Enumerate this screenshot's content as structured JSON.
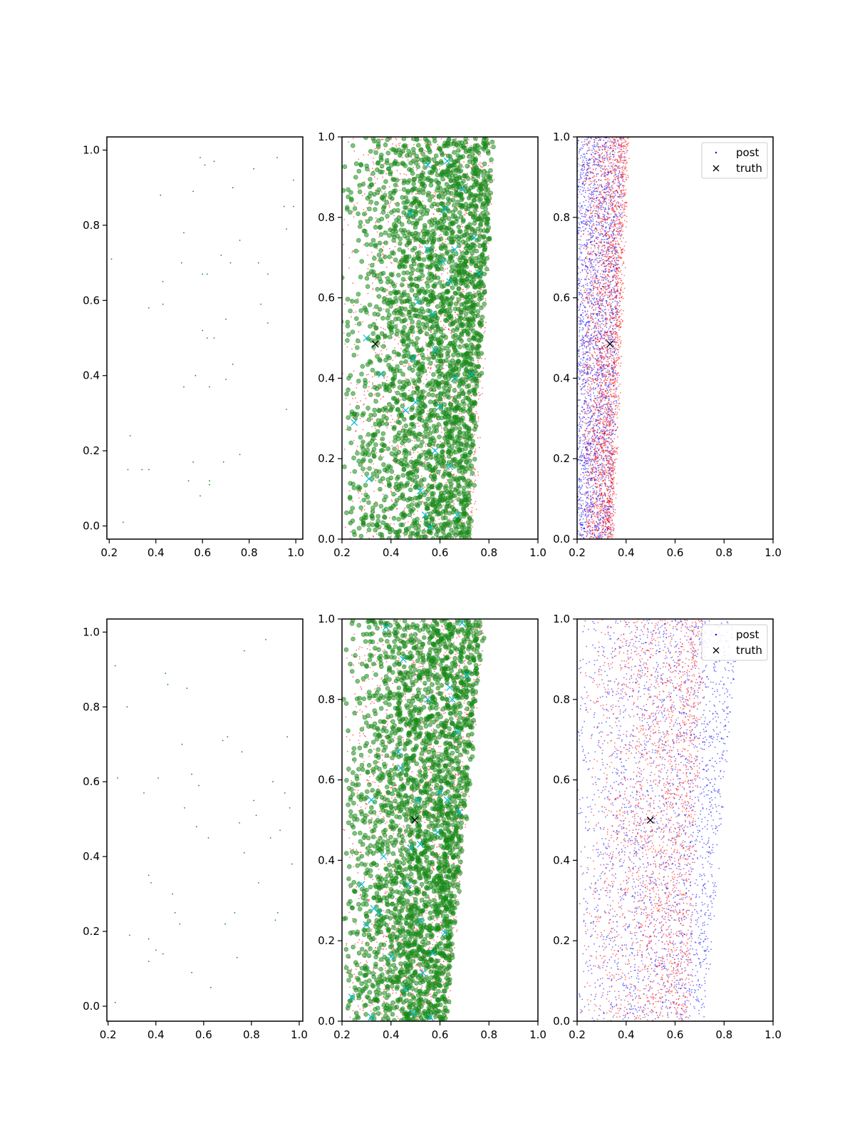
{
  "figure": {
    "background": "#ffffff",
    "layout": "2 rows x 3 columns of scatter panels"
  },
  "colors": {
    "axes": "#000000",
    "green": "#1a8a1a",
    "red": "#ff0000",
    "blue": "#0000ff",
    "cyan": "#00bcd4",
    "truth": "#000000"
  },
  "legend_text": {
    "post": "post",
    "truth": "truth"
  },
  "chart_data": [
    {
      "panel": "top-left",
      "type": "scatter",
      "title": "",
      "xlabel": "",
      "ylabel": "",
      "xlim": [
        0.19,
        1.03
      ],
      "ylim": [
        -0.035,
        1.035
      ],
      "xticks": [
        "0.2",
        "0.4",
        "0.6",
        "0.8",
        "1.0"
      ],
      "yticks": [
        "0.0",
        "0.2",
        "0.4",
        "0.6",
        "0.8",
        "1.0"
      ],
      "legend": null,
      "series": [
        {
          "marker": "dot",
          "color": "#1a8a1a",
          "points": [
            [
              0.21,
              0.71
            ],
            [
              0.26,
              0.01
            ],
            [
              0.28,
              0.15
            ],
            [
              0.29,
              0.24
            ],
            [
              0.34,
              0.15
            ],
            [
              0.37,
              0.15
            ],
            [
              0.37,
              0.58
            ],
            [
              0.42,
              0.88
            ],
            [
              0.43,
              0.65
            ],
            [
              0.43,
              0.59
            ],
            [
              0.51,
              0.7
            ],
            [
              0.52,
              0.78
            ],
            [
              0.52,
              0.37
            ],
            [
              0.54,
              0.12
            ],
            [
              0.56,
              0.89
            ],
            [
              0.56,
              0.17
            ],
            [
              0.57,
              0.4
            ],
            [
              0.59,
              0.98
            ],
            [
              0.6,
              0.52
            ],
            [
              0.6,
              0.67
            ],
            [
              0.61,
              0.96
            ],
            [
              0.62,
              0.67
            ],
            [
              0.62,
              0.5
            ],
            [
              0.63,
              0.12
            ],
            [
              0.63,
              0.11
            ],
            [
              0.63,
              0.37
            ],
            [
              0.65,
              0.97
            ],
            [
              0.65,
              0.5
            ],
            [
              0.68,
              0.72
            ],
            [
              0.69,
              0.17
            ],
            [
              0.7,
              0.55
            ],
            [
              0.7,
              0.39
            ],
            [
              0.72,
              0.7
            ],
            [
              0.73,
              0.9
            ],
            [
              0.73,
              0.43
            ],
            [
              0.76,
              0.76
            ],
            [
              0.76,
              0.19
            ],
            [
              0.82,
              0.95
            ],
            [
              0.84,
              0.7
            ],
            [
              0.85,
              0.59
            ],
            [
              0.88,
              0.67
            ],
            [
              0.88,
              0.54
            ],
            [
              0.92,
              0.98
            ],
            [
              0.95,
              0.85
            ],
            [
              0.96,
              0.79
            ],
            [
              0.96,
              0.31
            ],
            [
              0.99,
              0.92
            ],
            [
              0.99,
              0.85
            ],
            [
              0.59,
              0.08
            ]
          ]
        }
      ]
    },
    {
      "panel": "top-middle",
      "type": "scatter",
      "title": "",
      "xlabel": "",
      "ylabel": "",
      "xlim": [
        0.2,
        1.0
      ],
      "ylim": [
        0.0,
        1.0
      ],
      "xticks": [
        "0.2",
        "0.4",
        "0.6",
        "0.8",
        "1.0"
      ],
      "yticks": [
        "0.0",
        "0.2",
        "0.4",
        "0.6",
        "0.8",
        "1.0"
      ],
      "legend": null,
      "series": [
        {
          "marker": "small-dot",
          "color": "#ff0000",
          "count": 2200,
          "center": [
            0.62,
            0.5
          ],
          "band": {
            "x_right_at_y0": 0.74,
            "x_right_at_y1": 0.82,
            "x_left": 0.2,
            "skew": 0.55
          }
        },
        {
          "marker": "circle",
          "color": "#1a8a1a",
          "count": 2600,
          "center": [
            0.6,
            0.5
          ],
          "band": {
            "x_right_at_y0": 0.72,
            "x_right_at_y1": 0.82,
            "x_left": 0.2,
            "skew": 0.6
          }
        },
        {
          "marker": "x",
          "color": "#00bcd4",
          "points": [
            [
              0.3,
              0.5
            ],
            [
              0.25,
              0.29
            ],
            [
              0.31,
              0.15
            ],
            [
              0.36,
              0.41
            ],
            [
              0.46,
              0.32
            ],
            [
              0.5,
              0.34
            ],
            [
              0.51,
              0.59
            ],
            [
              0.55,
              0.72
            ],
            [
              0.57,
              0.56
            ],
            [
              0.6,
              0.33
            ],
            [
              0.62,
              0.82
            ],
            [
              0.64,
              0.64
            ],
            [
              0.66,
              0.4
            ],
            [
              0.66,
              0.72
            ],
            [
              0.69,
              0.87
            ],
            [
              0.73,
              0.41
            ],
            [
              0.74,
              0.75
            ],
            [
              0.76,
              0.66
            ],
            [
              0.48,
              0.81
            ],
            [
              0.55,
              0.93
            ],
            [
              0.63,
              0.94
            ],
            [
              0.54,
              0.06
            ],
            [
              0.56,
              0.03
            ],
            [
              0.58,
              0.22
            ],
            [
              0.64,
              0.18
            ],
            [
              0.67,
              0.06
            ],
            [
              0.52,
              0.12
            ],
            [
              0.49,
              0.45
            ],
            [
              0.58,
              0.47
            ],
            [
              0.61,
              0.69
            ]
          ]
        },
        {
          "marker": "x",
          "color": "#000000",
          "name": "truth",
          "points": [
            [
              0.336,
              0.485
            ]
          ]
        }
      ]
    },
    {
      "panel": "top-right",
      "type": "scatter",
      "title": "",
      "xlabel": "",
      "ylabel": "",
      "xlim": [
        0.2,
        1.0
      ],
      "ylim": [
        0.0,
        1.0
      ],
      "xticks": [
        "0.2",
        "0.4",
        "0.6",
        "0.8",
        "1.0"
      ],
      "yticks": [
        "0.0",
        "0.2",
        "0.4",
        "0.6",
        "0.8",
        "1.0"
      ],
      "legend": {
        "position": "upper right",
        "entries": [
          "post",
          "truth"
        ]
      },
      "series": [
        {
          "marker": "small-dot",
          "color": "#0000ff",
          "name": "post",
          "count": 2600,
          "band": {
            "x_left": 0.2,
            "x_right_at_y0": 0.34,
            "x_right_at_y1": 0.39,
            "skew": 0.0
          }
        },
        {
          "marker": "small-dot",
          "color": "#ff0000",
          "count": 2600,
          "band": {
            "x_left": 0.22,
            "x_right_at_y0": 0.345,
            "x_right_at_y1": 0.41,
            "skew": 0.55
          }
        },
        {
          "marker": "x",
          "color": "#000000",
          "name": "truth",
          "points": [
            [
              0.334,
              0.485
            ]
          ]
        }
      ]
    },
    {
      "panel": "bottom-left",
      "type": "scatter",
      "title": "",
      "xlabel": "",
      "ylabel": "",
      "xlim": [
        0.195,
        1.015
      ],
      "ylim": [
        -0.04,
        1.035
      ],
      "xticks": [
        "0.2",
        "0.4",
        "0.6",
        "0.8",
        "1.0"
      ],
      "yticks": [
        "0.0",
        "0.2",
        "0.4",
        "0.6",
        "0.8",
        "1.0"
      ],
      "legend": null,
      "series": [
        {
          "marker": "dot",
          "color": "#1a8a1a",
          "points": [
            [
              0.23,
              0.91
            ],
            [
              0.23,
              0.01
            ],
            [
              0.24,
              0.61
            ],
            [
              0.28,
              0.8
            ],
            [
              0.29,
              0.19
            ],
            [
              0.35,
              0.57
            ],
            [
              0.37,
              0.35
            ],
            [
              0.37,
              0.18
            ],
            [
              0.37,
              0.12
            ],
            [
              0.38,
              0.33
            ],
            [
              0.4,
              0.15
            ],
            [
              0.41,
              0.61
            ],
            [
              0.43,
              0.14
            ],
            [
              0.44,
              0.89
            ],
            [
              0.45,
              0.86
            ],
            [
              0.47,
              0.3
            ],
            [
              0.48,
              0.25
            ],
            [
              0.5,
              0.22
            ],
            [
              0.51,
              0.7
            ],
            [
              0.52,
              0.53
            ],
            [
              0.53,
              0.85
            ],
            [
              0.55,
              0.62
            ],
            [
              0.55,
              0.09
            ],
            [
              0.57,
              0.48
            ],
            [
              0.58,
              0.59
            ],
            [
              0.62,
              0.45
            ],
            [
              0.63,
              0.05
            ],
            [
              0.68,
              0.71
            ],
            [
              0.69,
              0.22
            ],
            [
              0.7,
              0.72
            ],
            [
              0.73,
              0.25
            ],
            [
              0.74,
              0.13
            ],
            [
              0.75,
              0.49
            ],
            [
              0.76,
              0.68
            ],
            [
              0.77,
              0.95
            ],
            [
              0.77,
              0.41
            ],
            [
              0.81,
              0.55
            ],
            [
              0.82,
              0.51
            ],
            [
              0.83,
              0.33
            ],
            [
              0.86,
              0.98
            ],
            [
              0.88,
              0.45
            ],
            [
              0.89,
              0.6
            ],
            [
              0.9,
              0.23
            ],
            [
              0.91,
              0.25
            ],
            [
              0.92,
              0.47
            ],
            [
              0.94,
              0.57
            ],
            [
              0.95,
              0.72
            ],
            [
              0.96,
              0.53
            ],
            [
              0.97,
              0.38
            ]
          ]
        }
      ]
    },
    {
      "panel": "bottom-middle",
      "type": "scatter",
      "title": "",
      "xlabel": "",
      "ylabel": "",
      "xlim": [
        0.2,
        1.0
      ],
      "ylim": [
        0.0,
        1.0
      ],
      "xticks": [
        "0.2",
        "0.4",
        "0.6",
        "0.8",
        "1.0"
      ],
      "yticks": [
        "0.0",
        "0.2",
        "0.4",
        "0.6",
        "0.8",
        "1.0"
      ],
      "legend": null,
      "series": [
        {
          "marker": "small-dot",
          "color": "#ff0000",
          "count": 2200,
          "band": {
            "x_left": 0.2,
            "x_right_at_y0": 0.63,
            "x_right_at_y1": 0.78,
            "skew": 0.55
          }
        },
        {
          "marker": "circle",
          "color": "#1a8a1a",
          "count": 2600,
          "band": {
            "x_left": 0.2,
            "x_right_at_y0": 0.62,
            "x_right_at_y1": 0.78,
            "skew": 0.6
          }
        },
        {
          "marker": "x",
          "color": "#00bcd4",
          "points": [
            [
              0.24,
              0.06
            ],
            [
              0.28,
              0.34
            ],
            [
              0.3,
              0.24
            ],
            [
              0.32,
              0.55
            ],
            [
              0.33,
              0.28
            ],
            [
              0.35,
              0.27
            ],
            [
              0.37,
              0.41
            ],
            [
              0.38,
              0.98
            ],
            [
              0.4,
              0.16
            ],
            [
              0.43,
              0.67
            ],
            [
              0.44,
              0.63
            ],
            [
              0.45,
              0.9
            ],
            [
              0.46,
              0.08
            ],
            [
              0.47,
              0.34
            ],
            [
              0.48,
              0.43
            ],
            [
              0.51,
              0.55
            ],
            [
              0.52,
              0.25
            ],
            [
              0.53,
              0.12
            ],
            [
              0.55,
              0.8
            ],
            [
              0.57,
              0.17
            ],
            [
              0.59,
              0.47
            ],
            [
              0.6,
              0.57
            ],
            [
              0.62,
              0.22
            ],
            [
              0.63,
              0.55
            ],
            [
              0.64,
              0.83
            ],
            [
              0.65,
              0.8
            ],
            [
              0.67,
              0.72
            ],
            [
              0.68,
              0.52
            ],
            [
              0.69,
              0.99
            ],
            [
              0.71,
              0.86
            ],
            [
              0.32,
              0.01
            ],
            [
              0.49,
              0.02
            ],
            [
              0.56,
              0.01
            ],
            [
              0.52,
              0.44
            ]
          ]
        },
        {
          "marker": "x",
          "color": "#000000",
          "name": "truth",
          "points": [
            [
              0.497,
              0.5
            ]
          ]
        }
      ]
    },
    {
      "panel": "bottom-right",
      "type": "scatter",
      "title": "",
      "xlabel": "",
      "ylabel": "",
      "xlim": [
        0.2,
        1.0
      ],
      "ylim": [
        0.0,
        1.0
      ],
      "xticks": [
        "0.2",
        "0.4",
        "0.6",
        "0.8",
        "1.0"
      ],
      "yticks": [
        "0.0",
        "0.2",
        "0.4",
        "0.6",
        "0.8",
        "1.0"
      ],
      "legend": {
        "position": "upper right",
        "entries": [
          "post",
          "truth"
        ]
      },
      "series": [
        {
          "marker": "small-dot",
          "color": "#0000ff",
          "name": "post",
          "count": 2400,
          "band": {
            "x_left": 0.2,
            "x_right_at_y0": 0.72,
            "x_right_at_y1": 0.86,
            "skew": 0.35
          }
        },
        {
          "marker": "small-dot",
          "color": "#ff0000",
          "count": 2200,
          "band": {
            "x_left": 0.22,
            "x_right_at_y0": 0.65,
            "x_right_at_y1": 0.72,
            "skew": 0.6
          }
        },
        {
          "marker": "x",
          "color": "#000000",
          "name": "truth",
          "points": [
            [
              0.499,
              0.5
            ]
          ]
        }
      ]
    }
  ]
}
